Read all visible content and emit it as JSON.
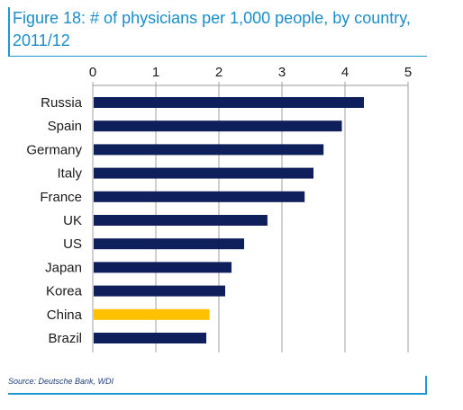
{
  "figure": {
    "title": "Figure 18: # of physicians per 1,000 people, by country, 2011/12",
    "source": "Source: Deutsche Bank, WDI",
    "accent_color": "#1f9ad0"
  },
  "chart_data": {
    "type": "bar",
    "orientation": "horizontal",
    "title": "Figure 18: # of physicians per 1,000 people, by country, 2011/12",
    "xlabel": "",
    "ylabel": "",
    "xlim": [
      0,
      5
    ],
    "x_ticks": [
      "0",
      "1",
      "2",
      "3",
      "4",
      "5"
    ],
    "x_axis_position": "top",
    "grid": true,
    "legend": "none",
    "categories": [
      "Russia",
      "Spain",
      "Germany",
      "Italy",
      "France",
      "UK",
      "US",
      "Japan",
      "Korea",
      "China",
      "Brazil"
    ],
    "values": [
      4.3,
      3.95,
      3.66,
      3.5,
      3.36,
      2.77,
      2.4,
      2.2,
      2.1,
      1.85,
      1.8
    ],
    "bar_color": "#0f1f5c",
    "highlight_color": "#ffc000",
    "highlight_category": "China"
  }
}
